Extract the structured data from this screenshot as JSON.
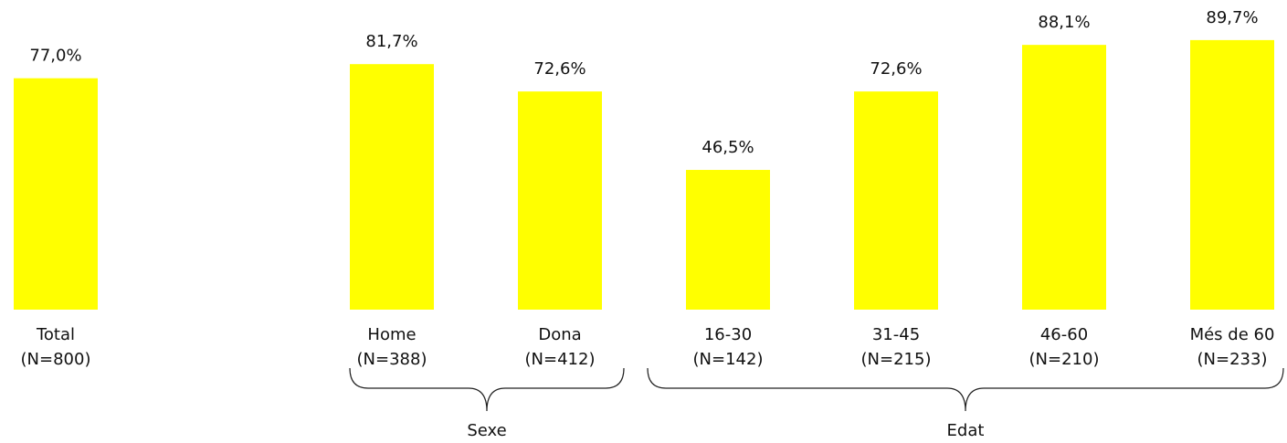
{
  "chart_data": {
    "type": "bar",
    "categories": [
      "Total",
      "Home",
      "Dona",
      "16-30",
      "31-45",
      "46-60",
      "Més de 60"
    ],
    "sample_sizes": [
      "(N=800)",
      "(N=388)",
      "(N=412)",
      "(N=142)",
      "(N=215)",
      "(N=210)",
      "(N=233)"
    ],
    "values": [
      77.0,
      81.7,
      72.6,
      46.5,
      72.6,
      88.1,
      89.7
    ],
    "value_labels": [
      "77,0%",
      "81,7%",
      "72,6%",
      "46,5%",
      "72,6%",
      "88,1%",
      "89,7%"
    ],
    "color": "#ffff00",
    "ylim": [
      0,
      100
    ],
    "groups": [
      {
        "label": "Sexe",
        "first": 1,
        "last": 2
      },
      {
        "label": "Edat",
        "first": 3,
        "last": 6
      }
    ]
  }
}
